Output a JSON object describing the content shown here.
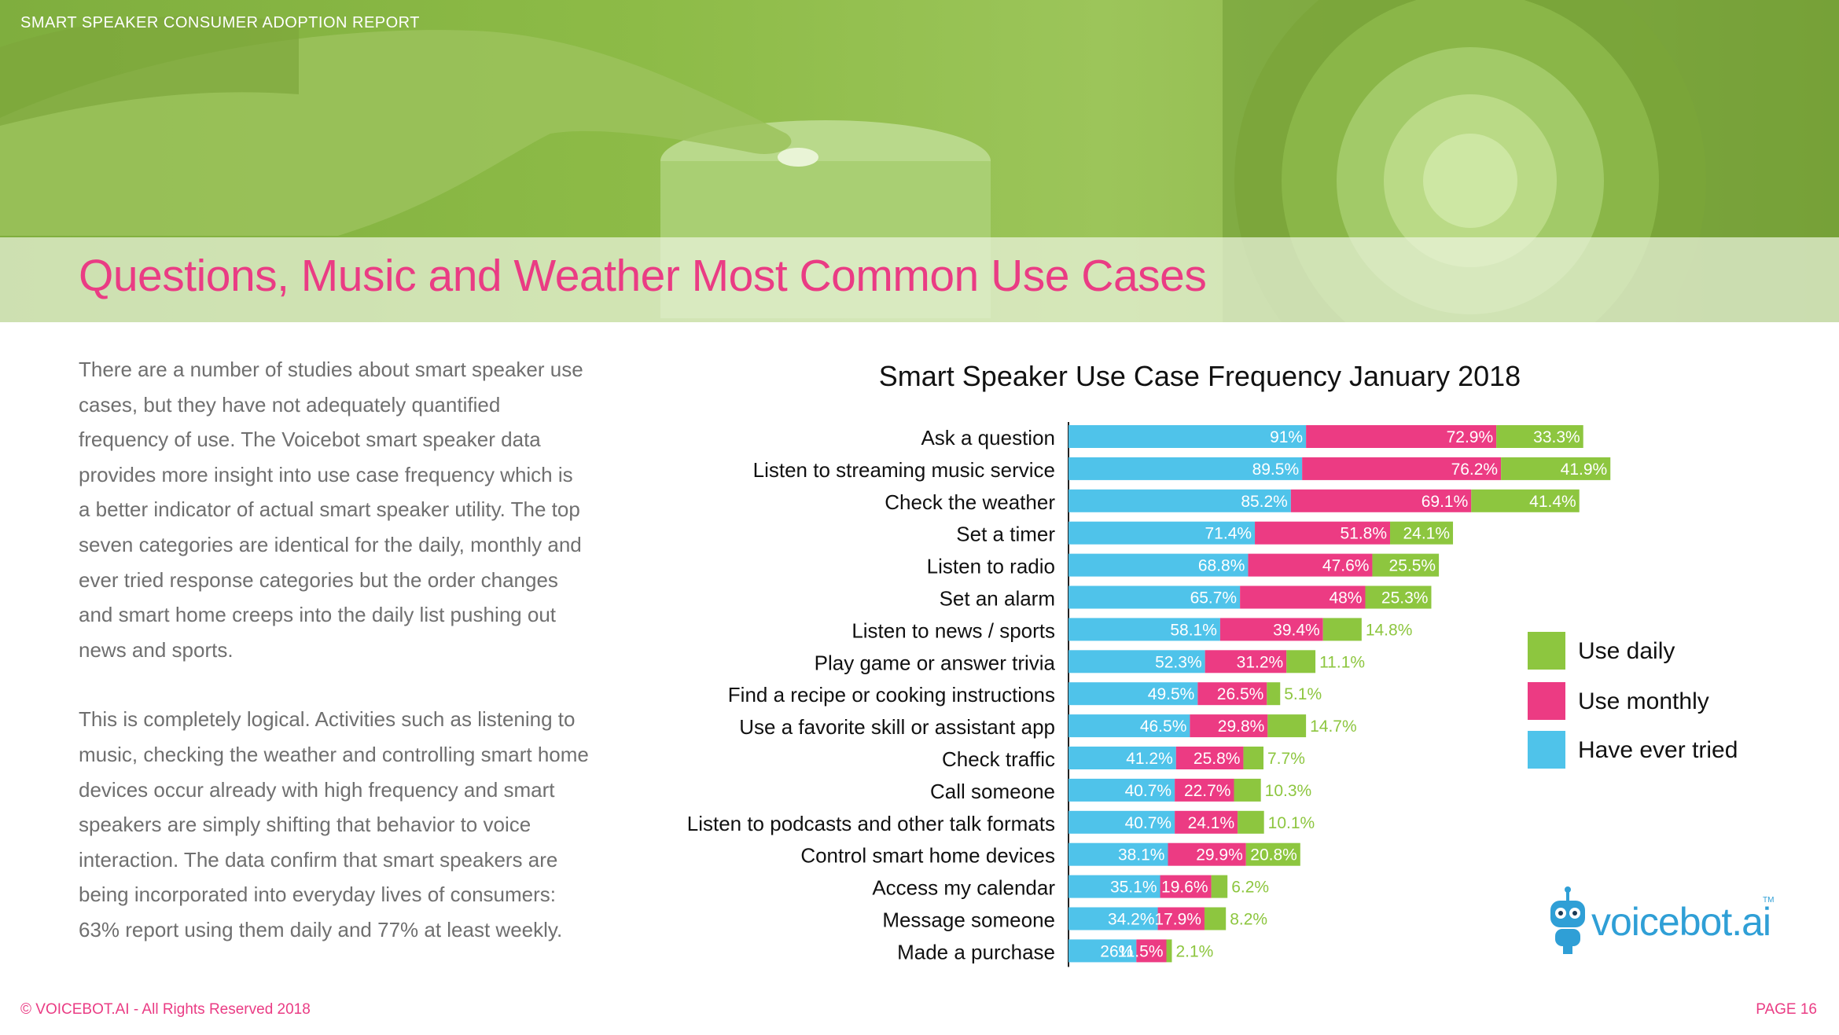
{
  "header": {
    "report_label": "SMART SPEAKER CONSUMER ADOPTION REPORT",
    "page_title": "Questions, Music and Weather Most Common Use Cases"
  },
  "body": {
    "paragraphs": [
      "There are a number of studies about smart speaker use cases, but they have not adequately quantified frequency of use. The Voicebot smart speaker data provides more insight into use case frequency which is a better indicator of actual smart speaker utility. The top seven categories are identical for the daily, monthly and ever tried response categories but the order changes and smart home creeps into the daily list pushing out news and sports.",
      "This is completely logical. Activities such as listening to music, checking the weather and controlling smart home devices occur already with high frequency and smart speakers are simply shifting that behavior to voice interaction. The data confirm that smart speakers are being incorporated into everyday lives of consumers: 63% report using them daily and 77% at least weekly."
    ]
  },
  "logo": {
    "text": "voicebot.ai",
    "tm": "TM"
  },
  "footer": {
    "copyright": "© VOICEBOT.AI - All Rights Reserved 2018",
    "page": "PAGE 16"
  },
  "colors": {
    "daily": "#8dc63f",
    "monthly": "#ec3b83",
    "ever": "#4fc3ea",
    "hero": "#8dbb47",
    "title": "#ea3c84"
  },
  "chart_data": {
    "type": "bar",
    "orientation": "horizontal",
    "stacked": true,
    "title": "Smart Speaker Use Case Frequency January 2018",
    "legend_position": "right",
    "categories": [
      "Ask a question",
      "Listen to streaming music service",
      "Check the weather",
      "Set a timer",
      "Listen to radio",
      "Set an alarm",
      "Listen to news / sports",
      "Play game or answer trivia",
      "Find a recipe or cooking instructions",
      "Use a favorite skill or assistant app",
      "Check traffic",
      "Call someone",
      "Listen to podcasts and other talk formats",
      "Control smart home devices",
      "Access my calendar",
      "Message someone",
      "Made a purchase"
    ],
    "series": [
      {
        "name": "Have ever tried",
        "values": [
          91,
          89.5,
          85.2,
          71.4,
          68.8,
          65.7,
          58.1,
          52.3,
          49.5,
          46.5,
          41.2,
          40.7,
          40.7,
          38.1,
          35.1,
          34.2,
          26
        ],
        "labels": [
          "91%",
          "89.5%",
          "85.2%",
          "71.4%",
          "68.8%",
          "65.7%",
          "58.1%",
          "52.3%",
          "49.5%",
          "46.5%",
          "41.2%",
          "40.7%",
          "40.7%",
          "38.1%",
          "35.1%",
          "34.2%",
          "26%"
        ]
      },
      {
        "name": "Use monthly",
        "values": [
          72.9,
          76.2,
          69.1,
          51.8,
          47.6,
          48,
          39.4,
          31.2,
          26.5,
          29.8,
          25.8,
          22.7,
          24.1,
          29.9,
          19.6,
          17.9,
          11.5
        ],
        "labels": [
          "72.9%",
          "76.2%",
          "69.1%",
          "51.8%",
          "47.6%",
          "48%",
          "39.4%",
          "31.2%",
          "26.5%",
          "29.8%",
          "25.8%",
          "22.7%",
          "24.1%",
          "29.9%",
          "19.6%",
          "17.9%",
          "11.5%"
        ]
      },
      {
        "name": "Use daily",
        "values": [
          33.3,
          41.9,
          41.4,
          24.1,
          25.5,
          25.3,
          14.8,
          11.1,
          5.1,
          14.7,
          7.7,
          10.3,
          10.1,
          20.8,
          6.2,
          8.2,
          2.1
        ],
        "labels": [
          "33.3%",
          "41.9%",
          "41.4%",
          "24.1%",
          "25.5%",
          "25.3%",
          "14.8%",
          "11.1%",
          "5.1%",
          "14.7%",
          "7.7%",
          "10.3%",
          "10.1%",
          "20.8%",
          "6.2%",
          "8.2%",
          "2.1%"
        ]
      }
    ],
    "legend": [
      "Use daily",
      "Use monthly",
      "Have ever tried"
    ]
  }
}
